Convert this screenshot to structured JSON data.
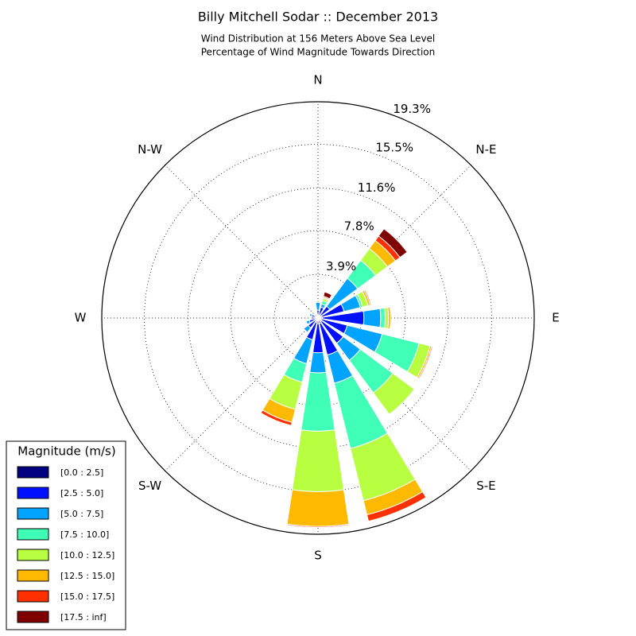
{
  "chart_data": {
    "type": "windrose",
    "title": "Billy Mitchell Sodar :: December 2013",
    "subtitle": [
      "Wind Distribution at 156 Meters Above Sea Level",
      "Percentage of Wind Magnitude Towards Direction"
    ],
    "legend_title": "Magnitude (m/s)",
    "legend": "lower left",
    "grid": true,
    "categories": [
      "N",
      null,
      "N-E",
      null,
      "E",
      null,
      "S-E",
      null,
      "S",
      null,
      "S-W",
      null,
      "W",
      null,
      "N-W",
      null
    ],
    "ylim": [
      0,
      19.3
    ],
    "yticks": [
      {
        "value": 3.9,
        "label": "3.9%"
      },
      {
        "value": 7.8,
        "label": "7.8%"
      },
      {
        "value": 11.6,
        "label": "11.6%"
      },
      {
        "value": 15.5,
        "label": "15.5%"
      },
      {
        "value": 19.3,
        "label": "19.3%"
      }
    ],
    "series": [
      {
        "name": "[0.0 : 2.5]",
        "color": "#000080",
        "values": [
          0.2,
          0.2,
          0.3,
          0.3,
          0.4,
          0.3,
          0.4,
          0.5,
          0.5,
          0.4,
          0.3,
          0.2,
          0.2,
          0.2,
          0.1,
          0.1
        ]
      },
      {
        "name": "[2.5 : 5.0]",
        "color": "#0010ff",
        "values": [
          0.5,
          0.8,
          1.0,
          2.1,
          3.7,
          2.4,
          2.4,
          2.9,
          2.6,
          1.6,
          0.8,
          0.6,
          0.4,
          0.4,
          0.3,
          0.2
        ]
      },
      {
        "name": "[5.0 : 7.5]",
        "color": "#00a4ff",
        "values": [
          0.7,
          0.3,
          3.1,
          1.5,
          1.5,
          3.2,
          1.9,
          2.6,
          1.8,
          2.2,
          0.5,
          0.3,
          0,
          0.2,
          0,
          0
        ]
      },
      {
        "name": "[7.5 : 10.0]",
        "color": "#40ffb7",
        "values": [
          0,
          0.3,
          2.0,
          0.2,
          0.4,
          3.4,
          3.6,
          6.0,
          5.2,
          1.7,
          0,
          0,
          0,
          0,
          0,
          0
        ]
      },
      {
        "name": "[10.0 : 12.5]",
        "color": "#b7ff40",
        "values": [
          0,
          0.2,
          1.3,
          0.5,
          0.3,
          1.0,
          2.4,
          4.8,
          5.4,
          2.5,
          0,
          0,
          0,
          0,
          0,
          0
        ]
      },
      {
        "name": "[12.5 : 15.0]",
        "color": "#ffb900",
        "values": [
          0,
          0.1,
          0.9,
          0.2,
          0.2,
          0.15,
          0,
          1.3,
          3.1,
          1.2,
          0,
          0,
          0,
          0,
          0,
          0
        ]
      },
      {
        "name": "[15.0 : 17.5]",
        "color": "#ff3000",
        "values": [
          0,
          0.1,
          0.5,
          0.1,
          0,
          0.1,
          0,
          0.6,
          0.1,
          0.3,
          0,
          0,
          0,
          0,
          0,
          0
        ]
      },
      {
        "name": "[17.5 : inf]",
        "color": "#800000",
        "values": [
          0,
          0.4,
          0.8,
          0,
          0,
          0,
          0,
          0,
          0,
          0,
          0,
          0,
          0,
          0,
          0,
          0
        ]
      }
    ]
  }
}
